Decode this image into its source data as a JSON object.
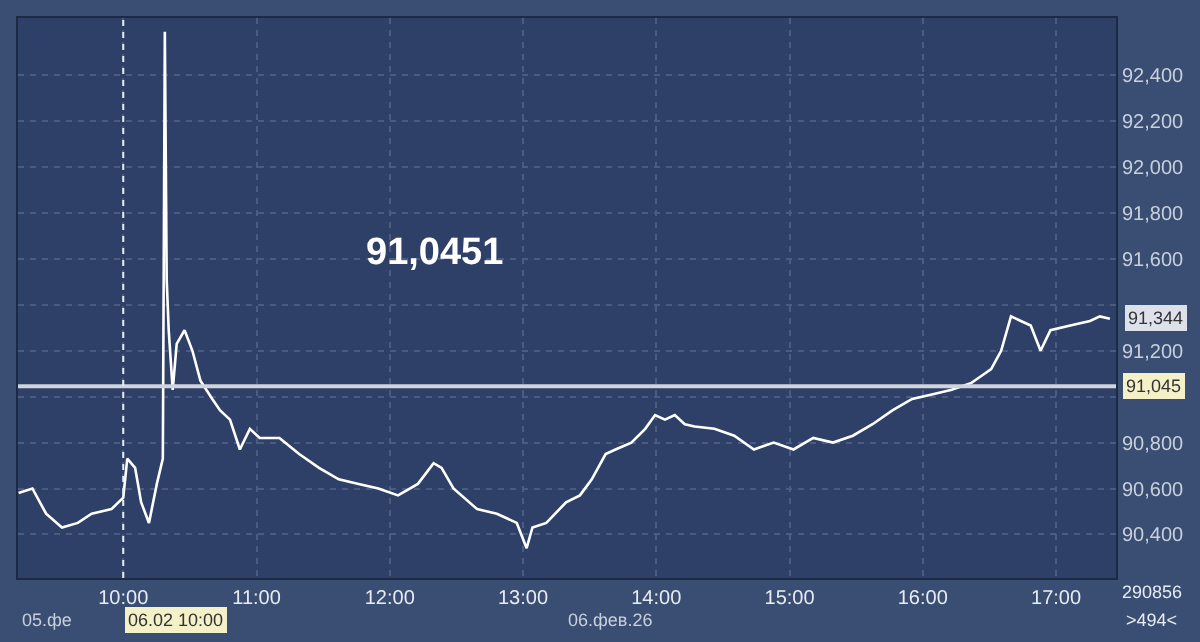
{
  "chart_data": {
    "type": "line",
    "x": [
      9.214,
      9.318,
      9.421,
      9.54,
      9.659,
      9.763,
      9.911,
      10.0,
      10.03,
      10.089,
      10.134,
      10.193,
      10.252,
      10.297,
      10.312,
      10.326,
      10.341,
      10.371,
      10.401,
      10.46,
      10.519,
      10.579,
      10.668,
      10.727,
      10.801,
      10.875,
      10.95,
      11.024,
      11.172,
      11.32,
      11.469,
      11.617,
      11.766,
      11.914,
      12.062,
      12.211,
      12.329,
      12.389,
      12.478,
      12.656,
      12.804,
      12.953,
      13.027,
      13.071,
      13.175,
      13.323,
      13.427,
      13.516,
      13.62,
      13.694,
      13.813,
      13.917,
      13.991,
      14.065,
      14.139,
      14.214,
      14.288,
      14.436,
      14.585,
      14.733,
      14.881,
      15.03,
      15.178,
      15.326,
      15.475,
      15.623,
      15.772,
      15.92,
      16.068,
      16.217,
      16.365,
      16.439,
      16.513,
      16.588,
      16.662,
      16.736,
      16.81,
      16.884,
      16.958,
      17.107,
      17.255,
      17.329,
      17.404
    ],
    "series": [
      {
        "color": "#ffffff",
        "values": [
          90580,
          90600,
          90490,
          90430,
          90450,
          90490,
          90510,
          90560,
          90730,
          90690,
          90540,
          90450,
          90620,
          90730,
          92590,
          91510,
          91290,
          91030,
          91230,
          91290,
          91200,
          91070,
          90990,
          90940,
          90900,
          90770,
          90860,
          90820,
          90820,
          90750,
          90690,
          90640,
          90620,
          90600,
          90570,
          90620,
          90710,
          90690,
          90600,
          90510,
          90490,
          90450,
          90340,
          90430,
          90450,
          90540,
          90570,
          90640,
          90750,
          90770,
          90800,
          90860,
          90920,
          90900,
          90920,
          90880,
          90870,
          90860,
          90830,
          90770,
          90800,
          90770,
          90820,
          90800,
          90830,
          90880,
          90940,
          90990,
          91010,
          91030,
          91060,
          91090,
          91120,
          91200,
          91350,
          91330,
          91310,
          91200,
          91290,
          91310,
          91330,
          91350,
          91340
        ]
      }
    ],
    "xlim": [
      9.21,
      17.45
    ],
    "ylim": [
      90210,
      92650
    ],
    "xticks": [
      {
        "value": 10,
        "label": "10:00"
      },
      {
        "value": 11,
        "label": "11:00"
      },
      {
        "value": 12,
        "label": "12:00"
      },
      {
        "value": 13,
        "label": "13:00"
      },
      {
        "value": 14,
        "label": "14:00"
      },
      {
        "value": 15,
        "label": "15:00"
      },
      {
        "value": 16,
        "label": "16:00"
      },
      {
        "value": 17,
        "label": "17:00"
      }
    ],
    "yticks": [
      {
        "value": 90400,
        "label": "90,400"
      },
      {
        "value": 90600,
        "label": "90,600"
      },
      {
        "value": 90800,
        "label": "90,800"
      },
      {
        "value": 91000,
        "label": null
      },
      {
        "value": 91200,
        "label": "91,200"
      },
      {
        "value": 91400,
        "label": null
      },
      {
        "value": 91600,
        "label": "91,600"
      },
      {
        "value": 91800,
        "label": "91,800"
      },
      {
        "value": 92000,
        "label": "92,000"
      },
      {
        "value": 92200,
        "label": "92,200"
      },
      {
        "value": 92400,
        "label": "92,400"
      }
    ],
    "ref_lines": [
      {
        "axis": "y",
        "value": 91045,
        "label": "91,045",
        "color": "#d0d4dc",
        "line_style": "solid"
      },
      {
        "axis": "x",
        "value": 10,
        "label": "06.02 10:00",
        "color": "#e8ecf2",
        "line_style": "dotted"
      }
    ],
    "annotations": [
      "91,0451",
      {
        "text": "91,344",
        "x": 17.45,
        "y": 91344
      },
      "05.фе",
      "06.фев.26",
      "290856",
      ">494<"
    ],
    "grid": true,
    "marker": "none",
    "line_style": "solid"
  }
}
